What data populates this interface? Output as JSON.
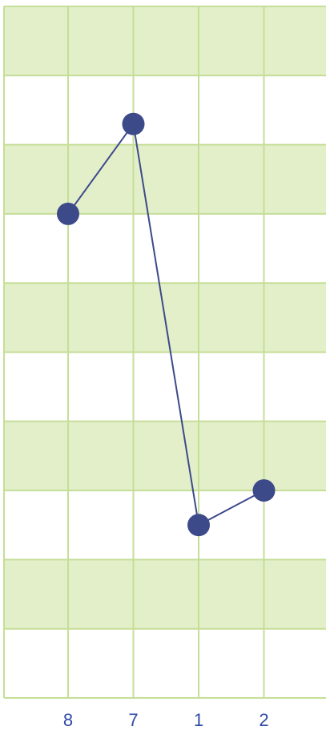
{
  "chart_data": {
    "type": "line",
    "title": "",
    "xlabel": "",
    "ylabel": "",
    "categories": [
      "8",
      "7",
      "1",
      "2"
    ],
    "series": [
      {
        "values": [
          6.0,
          7.3,
          1.5,
          2.0
        ]
      }
    ],
    "ylim": [
      -1,
      9
    ],
    "grid": true,
    "legend": "none",
    "colors": {
      "line": "#3d4a8a",
      "marker": "#3d4a8a",
      "band": "#e2efc9",
      "grid": "#c5de97",
      "tick_label": "#2f4aa6"
    }
  }
}
